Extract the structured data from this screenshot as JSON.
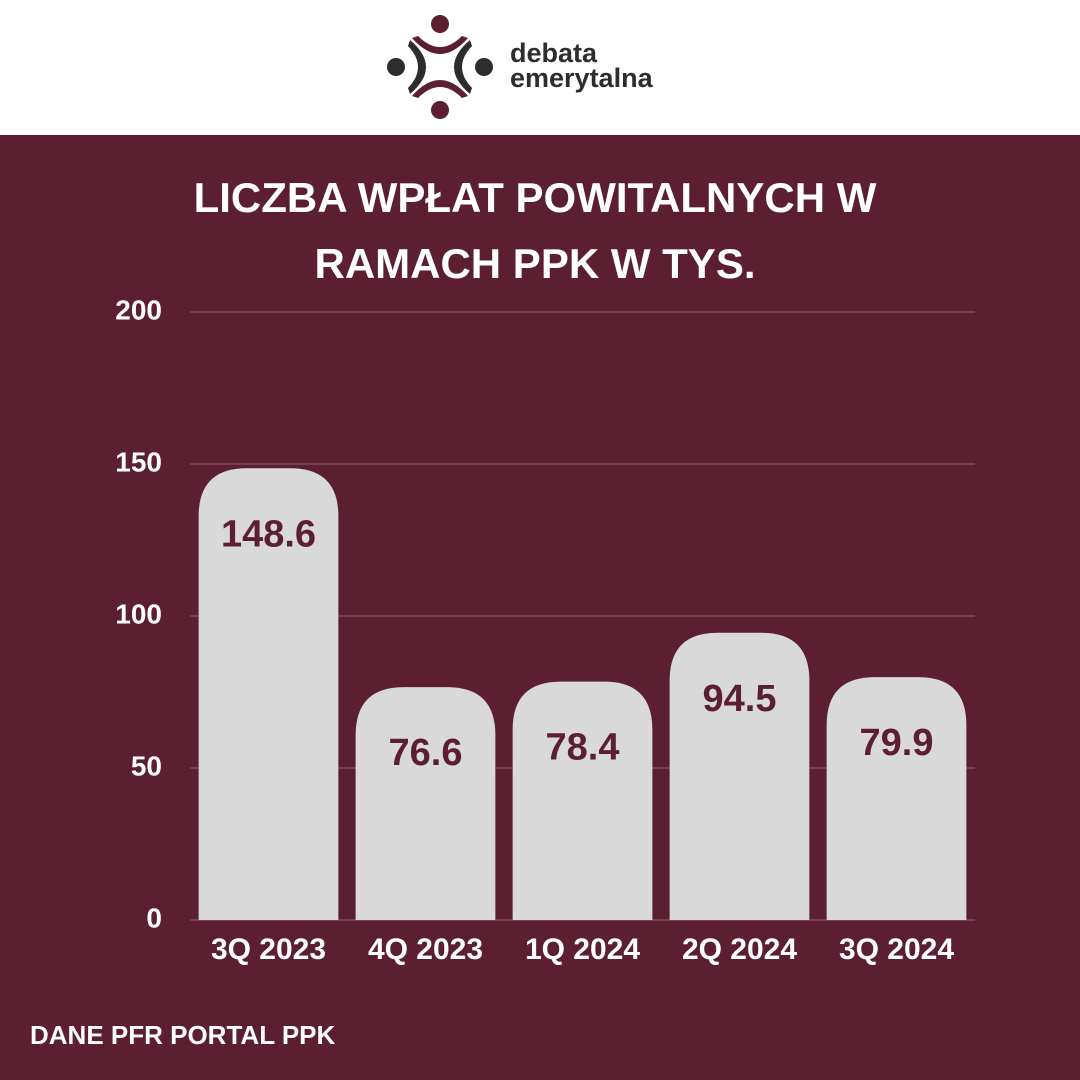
{
  "logo": {
    "line1": "debata",
    "line2": "emerytalna"
  },
  "chart_data": {
    "type": "bar",
    "title": "LICZBA WPŁAT POWITALNYCH W RAMACH PPK W TYS.",
    "categories": [
      "3Q 2023",
      "4Q 2023",
      "1Q 2024",
      "2Q 2024",
      "3Q 2024"
    ],
    "values": [
      148.6,
      76.6,
      78.4,
      94.5,
      79.9
    ],
    "color": "#d9d9d9",
    "label_color": "#5b1f31",
    "ylim": [
      0,
      200
    ],
    "yticks": [
      0,
      50,
      100,
      150,
      200
    ],
    "grid": true,
    "source": "DANE PFR PORTAL PPK"
  }
}
